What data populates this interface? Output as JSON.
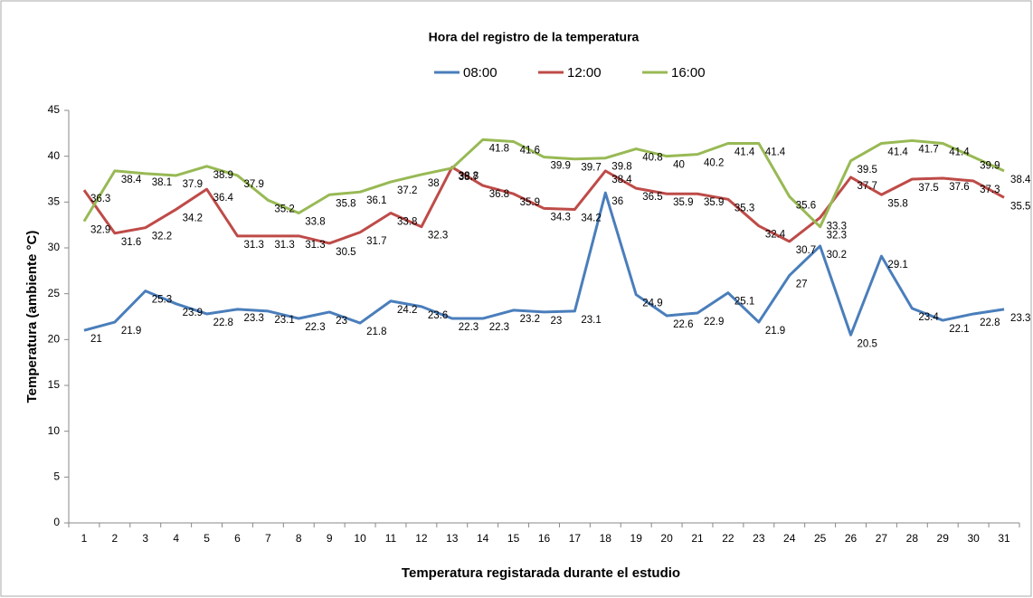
{
  "chart_data": {
    "type": "line",
    "title": "Hora del registro de la temperatura",
    "x_label": "Temperatura registarada durante el estudio",
    "y_label": "Temperatura (ambiente °C)",
    "categories": [
      1,
      2,
      3,
      4,
      5,
      6,
      7,
      8,
      9,
      10,
      11,
      12,
      13,
      14,
      15,
      16,
      17,
      18,
      19,
      20,
      21,
      22,
      23,
      24,
      25,
      26,
      27,
      28,
      29,
      30,
      31
    ],
    "ylim": [
      0,
      45
    ],
    "yticks": [
      0,
      5,
      10,
      15,
      20,
      25,
      30,
      35,
      40,
      45
    ],
    "grid": false,
    "legend": "top",
    "series": [
      {
        "name": "08:00",
        "color": "#4a7ebb",
        "values": [
          21,
          21.9,
          25.3,
          23.9,
          22.8,
          23.3,
          23.1,
          22.3,
          23,
          21.8,
          24.2,
          23.6,
          22.3,
          22.3,
          23.2,
          23,
          23.1,
          36,
          24.9,
          22.6,
          22.9,
          25.1,
          21.9,
          27,
          30.2,
          20.5,
          29.1,
          23.4,
          22.1,
          22.8,
          23.3
        ]
      },
      {
        "name": "12:00",
        "color": "#be4b48",
        "values": [
          36.3,
          31.6,
          32.2,
          34.2,
          36.4,
          31.3,
          31.3,
          31.3,
          30.5,
          31.7,
          33.8,
          32.3,
          38.8,
          36.8,
          35.9,
          34.3,
          34.2,
          38.4,
          36.5,
          35.9,
          35.9,
          35.3,
          32.4,
          30.7,
          33.3,
          37.7,
          35.8,
          37.5,
          37.6,
          37.3,
          35.5
        ]
      },
      {
        "name": "16:00",
        "color": "#98b954",
        "values": [
          32.9,
          38.4,
          38.1,
          37.9,
          38.9,
          37.9,
          35.2,
          33.8,
          35.8,
          36.1,
          37.2,
          38,
          38.7,
          41.8,
          41.6,
          39.9,
          39.7,
          39.8,
          40.8,
          40,
          40.2,
          41.4,
          41.4,
          35.6,
          32.3,
          39.5,
          41.4,
          41.7,
          41.4,
          39.9,
          38.4
        ]
      }
    ]
  }
}
